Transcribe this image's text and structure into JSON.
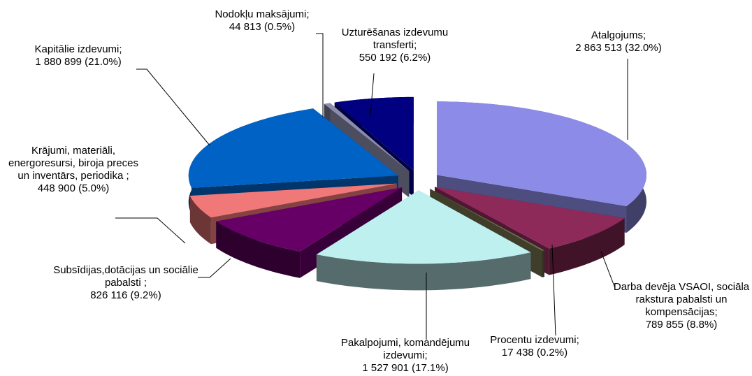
{
  "chart_data": {
    "type": "pie",
    "categories": [
      "Atalgojums;",
      "Darba devēja VSAOI, sociāla rakstura pabalsti un kompensācijas;",
      "Procentu izdevumi;",
      "Pakalpojumi, komandējumu izdevumi;",
      "Subsīdijas,dotācijas un sociālie pabalsti ;",
      "Krājumi, materiāli, energoresursi, biroja preces un inventārs, periodika ;",
      "Kapitālie izdevumi;",
      "Nodokļu maksājumi;",
      "Uzturēšanas izdevumu transferti;"
    ],
    "values": [
      2863513,
      789855,
      17438,
      1527901,
      826116,
      448900,
      1880899,
      44813,
      550192
    ],
    "value_labels": [
      "2 863 513 (32.0%)",
      "789 855 (8.8%)",
      "17 438 (0.2%)",
      "1 527 901 (17.1%)",
      "826 116 (9.2%)",
      "448 900 (5.0%)",
      "1 880 899 (21.0%)",
      "44 813 (0.5%)",
      "550 192 (6.2%)"
    ],
    "colors": [
      "#8c8ce8",
      "#8e2a5a",
      "#70704c",
      "#bff0f0",
      "#660066",
      "#f07878",
      "#0062c4",
      "#8c8cae",
      "#000080"
    ]
  }
}
